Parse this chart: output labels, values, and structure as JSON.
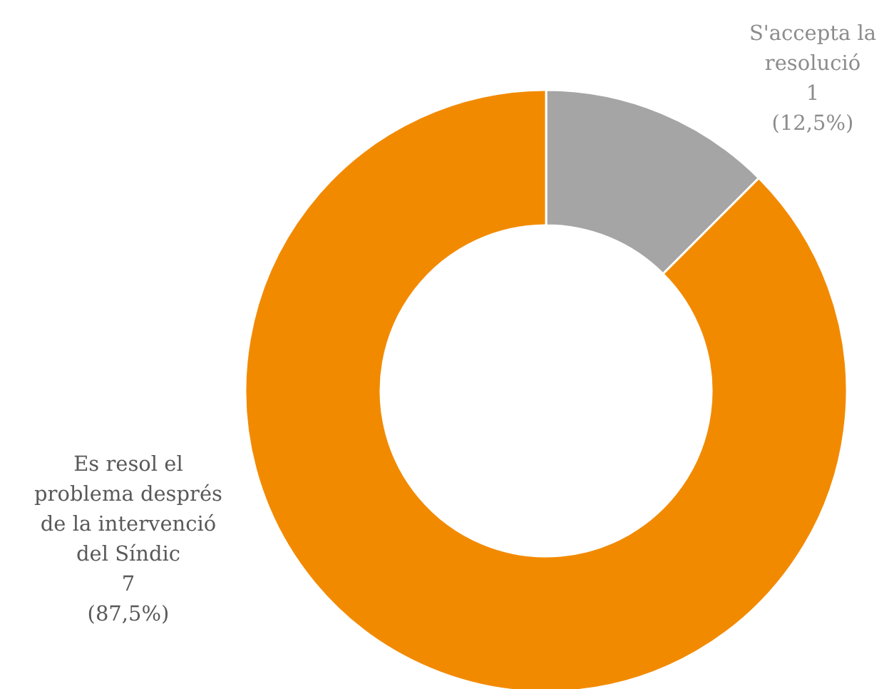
{
  "chart_data": {
    "type": "donut",
    "categories": [
      "S'accepta la resolució",
      "Es resol el problema després de la intervenció del Síndic"
    ],
    "values": [
      1,
      7
    ],
    "colors": [
      "#a5a5a5",
      "#f28a00"
    ],
    "value_labels": [
      "1\n(12,5%)",
      "7\n(87,5%)"
    ],
    "legend": false
  }
}
